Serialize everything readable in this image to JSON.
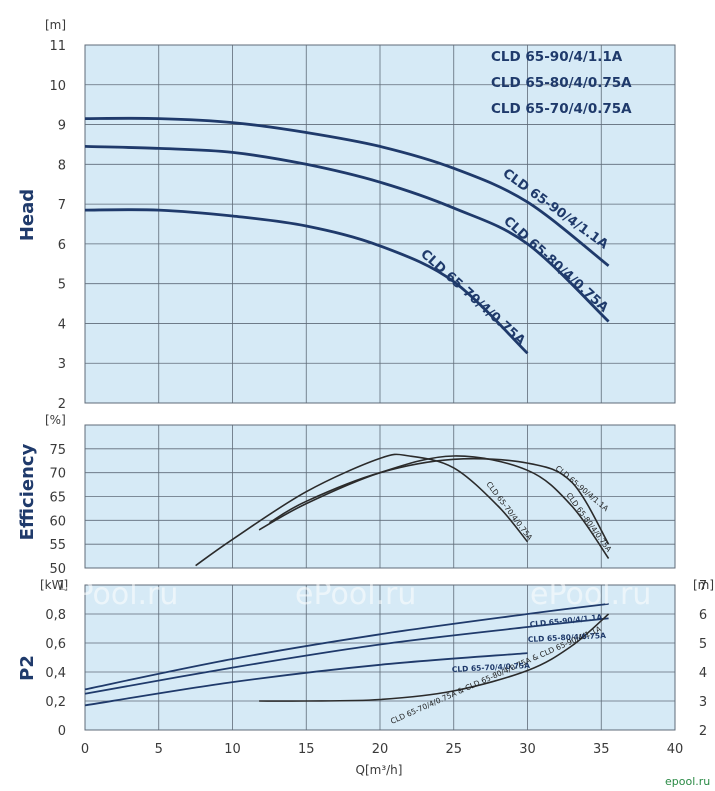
{
  "chart_data": [
    {
      "type": "line",
      "ylabel": "Head",
      "yunit": "[m]",
      "xlim": [
        0,
        40
      ],
      "ylim": [
        2,
        11
      ],
      "yticks": [
        2,
        3,
        4,
        5,
        6,
        7,
        8,
        9,
        10,
        11
      ],
      "grid": true,
      "legend": [
        "CLD 65-90/4/1.1A",
        "CLD 65-80/4/0.75A",
        "CLD 65-70/4/0.75A"
      ],
      "series": [
        {
          "name": "CLD 65-90/4/1.1A",
          "x": [
            0,
            5,
            10,
            15,
            20,
            25,
            30,
            35.5
          ],
          "y": [
            9.15,
            9.15,
            9.05,
            8.8,
            8.45,
            7.9,
            7.05,
            5.45
          ]
        },
        {
          "name": "CLD 65-80/4/0.75A",
          "x": [
            0,
            5,
            10,
            15,
            20,
            25,
            30,
            35.5
          ],
          "y": [
            8.45,
            8.4,
            8.3,
            8.0,
            7.55,
            6.9,
            6.0,
            4.05
          ]
        },
        {
          "name": "CLD 65-70/4/0.75A",
          "x": [
            0,
            5,
            10,
            15,
            20,
            25,
            30
          ],
          "y": [
            6.85,
            6.85,
            6.7,
            6.45,
            5.95,
            5.05,
            3.25
          ]
        }
      ]
    },
    {
      "type": "line",
      "ylabel": "Efficiency",
      "yunit": "[%]",
      "xlim": [
        0,
        40
      ],
      "ylim": [
        50,
        80
      ],
      "yticks": [
        50,
        55,
        60,
        65,
        70,
        75
      ],
      "grid": true,
      "series": [
        {
          "name": "CLD 65-70/4/0.75A",
          "x": [
            7.5,
            10,
            15,
            20,
            22,
            25,
            28,
            30
          ],
          "y": [
            50.5,
            56,
            66,
            73,
            73.5,
            71,
            63,
            55.5
          ]
        },
        {
          "name": "CLD 65-80/4/0.75A",
          "x": [
            11.8,
            15,
            20,
            25,
            30,
            33,
            35.5
          ],
          "y": [
            58,
            63.5,
            70,
            73.5,
            70.5,
            63,
            52
          ]
        },
        {
          "name": "CLD 65-90/4/1.1A",
          "x": [
            12.5,
            15,
            20,
            25,
            30,
            33,
            35.5
          ],
          "y": [
            59.5,
            64,
            70,
            72.8,
            72,
            68,
            55
          ]
        }
      ]
    },
    {
      "type": "line",
      "ylabel": "P2",
      "yunit": "[kW]",
      "y2unit": "[m]",
      "xlabel": "Q[m³/h]",
      "xlim": [
        0,
        40
      ],
      "xticks": [
        0,
        5,
        10,
        15,
        20,
        25,
        30,
        35,
        40
      ],
      "ylim": [
        0,
        1
      ],
      "yticks": [
        "0",
        "0,2",
        "0,4",
        "0,6",
        "0,8",
        "1"
      ],
      "y2lim": [
        2,
        7
      ],
      "y2ticks": [
        2,
        3,
        4,
        5,
        6,
        7
      ],
      "grid": true,
      "series": [
        {
          "name": "CLD 65-90/4/1.1A",
          "x": [
            0,
            10,
            20,
            30,
            35.5
          ],
          "y": [
            0.28,
            0.49,
            0.66,
            0.8,
            0.87
          ]
        },
        {
          "name": "CLD 65-80/4/0.75A",
          "x": [
            0,
            10,
            20,
            30,
            35.5
          ],
          "y": [
            0.25,
            0.43,
            0.59,
            0.71,
            0.77
          ]
        },
        {
          "name": "CLD 65-70/4/0.75A",
          "x": [
            0,
            10,
            20,
            30
          ],
          "y": [
            0.17,
            0.33,
            0.45,
            0.53
          ]
        },
        {
          "name": "CLD 65-70/4/0.75A & CLD 65-80/4/0.75A & CLD 65-90/4/1.1A",
          "x": [
            11.8,
            15,
            20,
            25,
            30,
            33,
            35.5
          ],
          "y2": [
            3.0,
            3.0,
            3.05,
            3.35,
            4.05,
            4.9,
            6.0
          ]
        }
      ]
    }
  ],
  "watermarks": [
    "ePool.ru",
    "ePool.ru",
    "ePool.ru",
    "epool.ru"
  ],
  "colors": {
    "plot_bg": "#d6eaf6",
    "grid": "#5f6b78",
    "head_curve": "#1f3a6b",
    "eff_curve": "#2b2b2b",
    "title": "#1f3a6b",
    "watermark_small": "#2a8a45"
  }
}
